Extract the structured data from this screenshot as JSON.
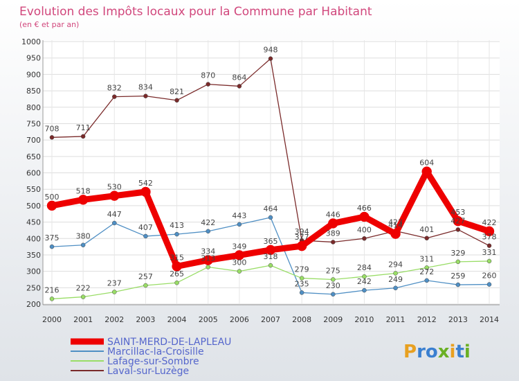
{
  "chart_data": {
    "type": "line",
    "title": "Evolution des Impôts locaux pour la Commune par Habitant",
    "subtitle": "(en € et par an)",
    "x": [
      "2000",
      "2001",
      "2002",
      "2003",
      "2004",
      "2005",
      "2006",
      "2007",
      "2008",
      "2009",
      "2010",
      "2011",
      "2012",
      "2013",
      "2014"
    ],
    "ylim": [
      200,
      1000
    ],
    "yticks": [
      200,
      250,
      300,
      350,
      400,
      450,
      500,
      550,
      600,
      650,
      700,
      750,
      800,
      850,
      900,
      950,
      1000
    ],
    "grid": true,
    "legend_position": "bottom-left",
    "series": [
      {
        "name": "SAINT-MERD-DE-LAPLEAU",
        "color": "#ee0000",
        "values": [
          500,
          518,
          530,
          542,
          315,
          334,
          349,
          365,
          377,
          446,
          466,
          414,
          604,
          453,
          422
        ],
        "labels": [
          "500",
          "518",
          "530",
          "542",
          "315",
          "334",
          "349",
          "365",
          "377",
          "446",
          "466",
          "414",
          "604",
          "453",
          "422"
        ]
      },
      {
        "name": "Marcillac-la-Croisille",
        "color": "#4f8fc4",
        "values": [
          375,
          380,
          447,
          407,
          413,
          422,
          443,
          464,
          235,
          230,
          242,
          249,
          272,
          259,
          260
        ],
        "labels": [
          "375",
          "380",
          "447",
          "407",
          "413",
          "422",
          "443",
          "464",
          "235",
          "230",
          "242",
          "249",
          "272",
          "259",
          "260"
        ]
      },
      {
        "name": "Lafage-sur-Sombre",
        "color": "#99dd66",
        "values": [
          216,
          222,
          237,
          257,
          265,
          313,
          300,
          318,
          279,
          275,
          284,
          294,
          311,
          329,
          331
        ],
        "labels": [
          "216",
          "222",
          "237",
          "257",
          "265",
          "313",
          "300",
          "318",
          "279",
          "275",
          "284",
          "294",
          "311",
          "329",
          "331"
        ]
      },
      {
        "name": "Laval-sur-Luzège",
        "color": "#7a2a2a",
        "values": [
          708,
          711,
          832,
          834,
          821,
          870,
          864,
          948,
          394,
          389,
          400,
          423,
          401,
          427,
          378
        ],
        "labels": [
          "708",
          "711",
          "832",
          "834",
          "821",
          "870",
          "864",
          "948",
          "394",
          "389",
          "400",
          "423",
          "401",
          "427",
          "378"
        ]
      }
    ]
  },
  "logo": {
    "text": "Proxiti"
  }
}
